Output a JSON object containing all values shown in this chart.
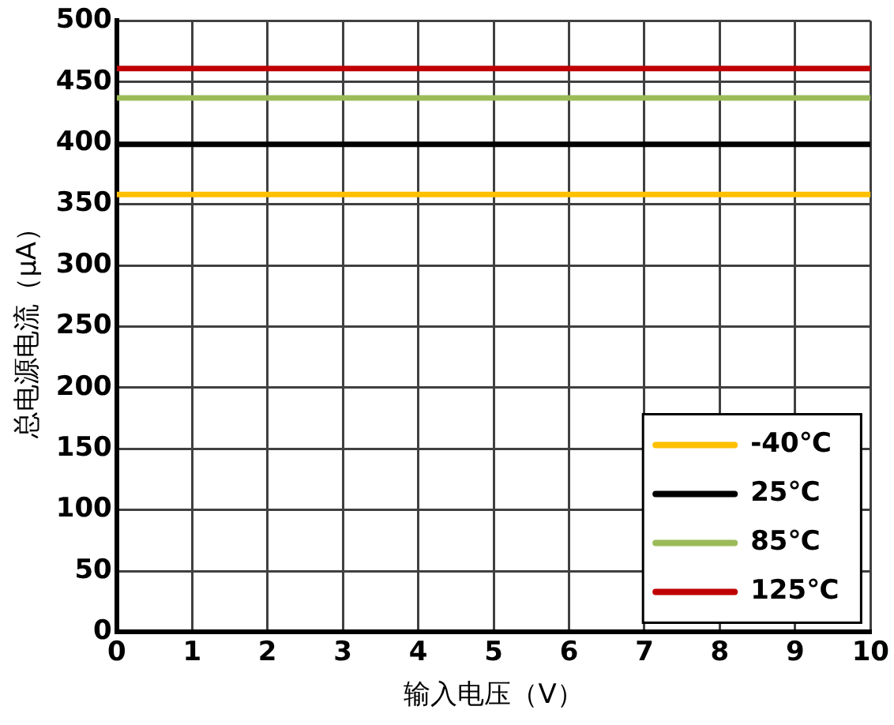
{
  "chart_data": {
    "type": "line",
    "xlabel": "输入电压（V）",
    "ylabel": "总电源电流（μA）",
    "x": [
      0,
      10
    ],
    "series": [
      {
        "name": "-40℃",
        "color": "#ffc000",
        "values": [
          358,
          358
        ]
      },
      {
        "name": "25℃",
        "color": "#000000",
        "values": [
          399,
          399
        ]
      },
      {
        "name": "85℃",
        "color": "#9bbb59",
        "values": [
          437,
          437
        ]
      },
      {
        "name": "125℃",
        "color": "#c00000",
        "values": [
          461,
          461
        ]
      }
    ],
    "xlim": [
      0,
      10
    ],
    "xticks": [
      0,
      1,
      2,
      3,
      4,
      5,
      6,
      7,
      8,
      9,
      10
    ],
    "ylim": [
      0,
      500
    ],
    "yticks": [
      0,
      50,
      100,
      150,
      200,
      250,
      300,
      350,
      400,
      450,
      500
    ],
    "grid": true,
    "legend": "bottom right",
    "marker": "none",
    "line_style": "solid"
  }
}
